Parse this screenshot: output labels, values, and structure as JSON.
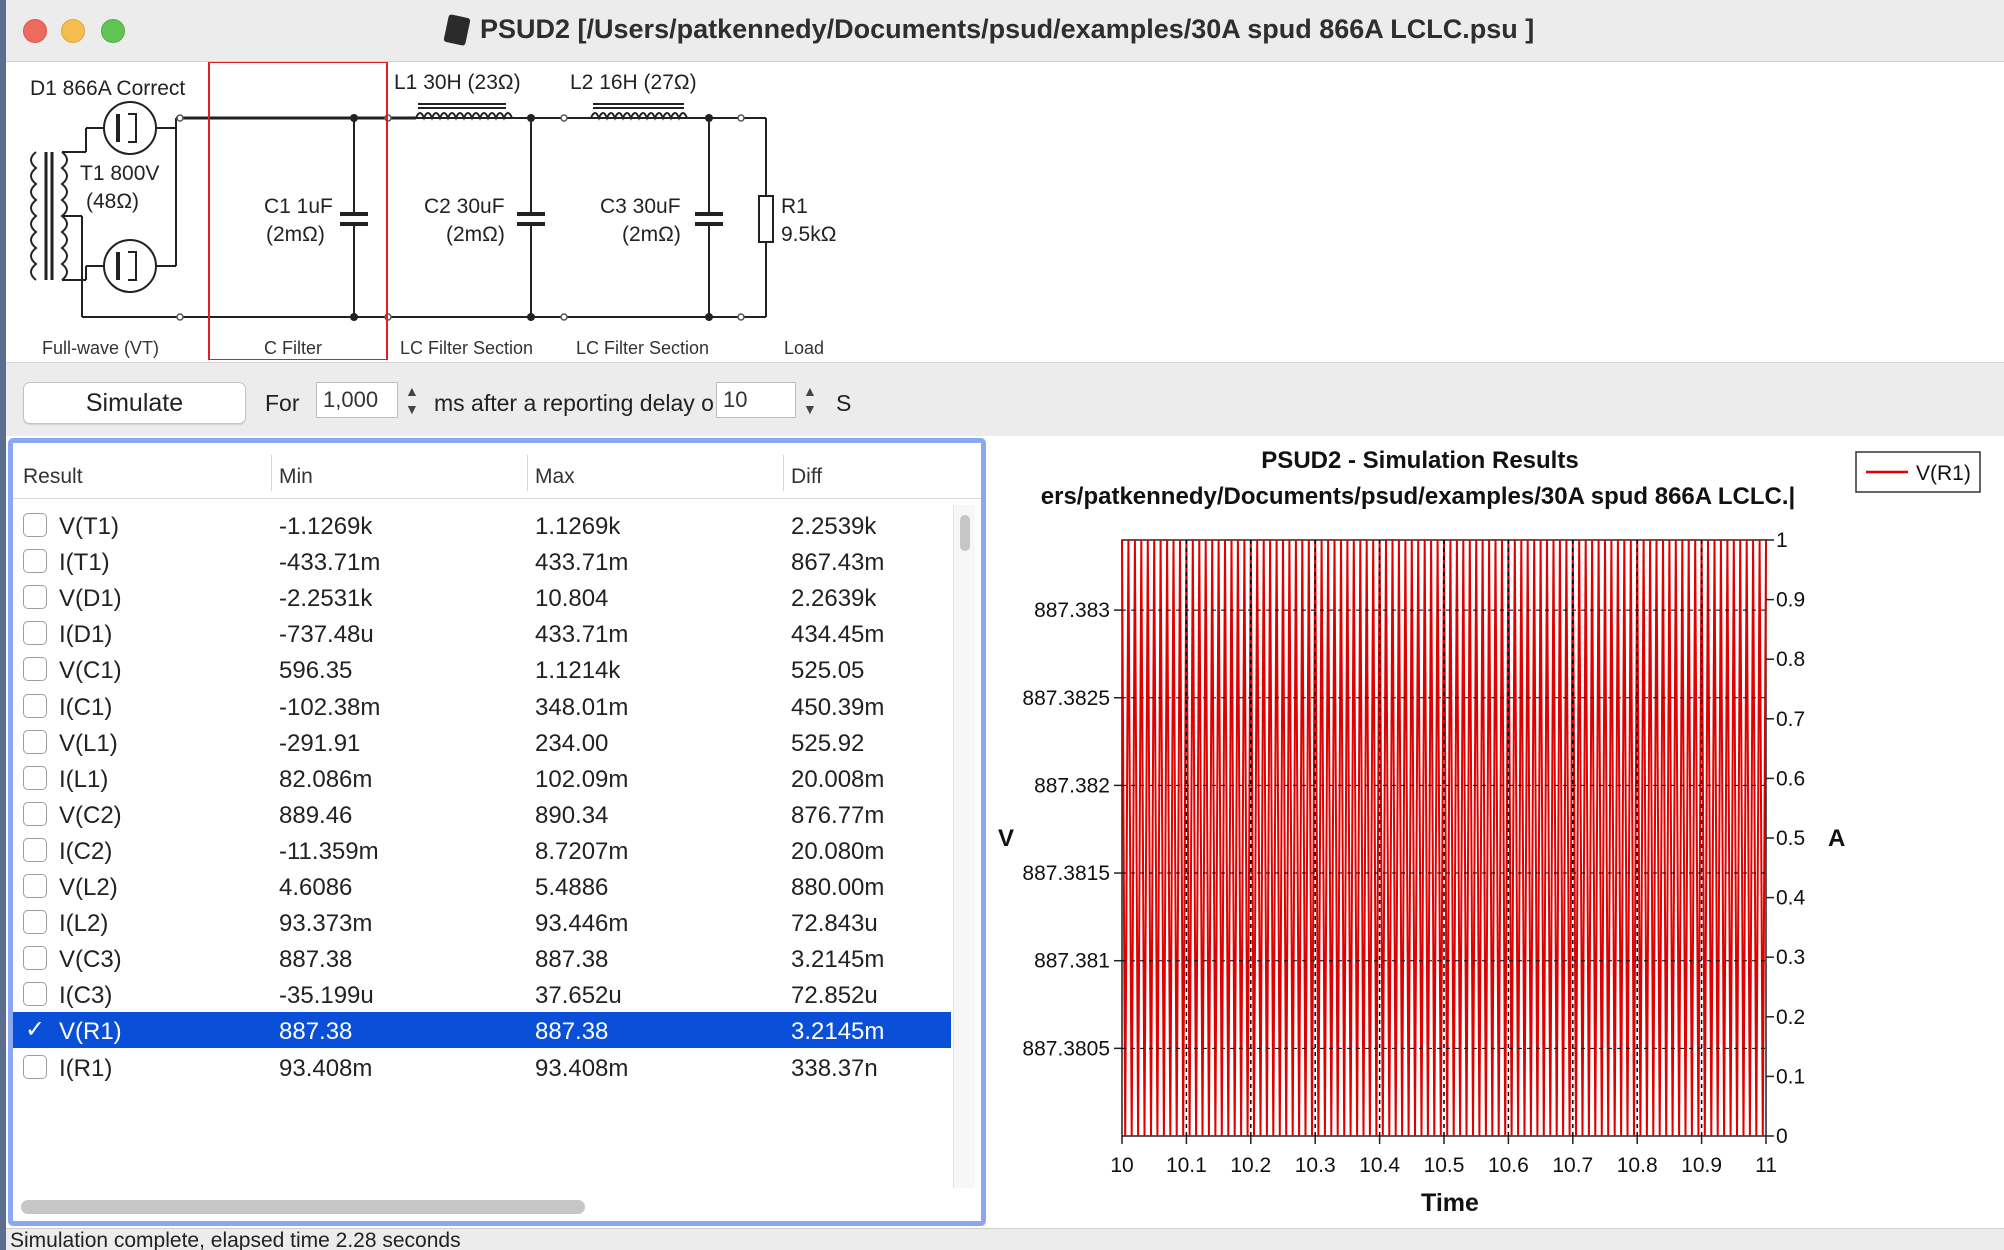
{
  "window": {
    "title": "PSUD2  [/Users/patkennedy/Documents/psud/examples/30A spud 866A LCLC.psu ]"
  },
  "schematic": {
    "components": {
      "d1": "D1 866A Correct",
      "t1_name": "T1 800V",
      "t1_res": "(48Ω)",
      "c1_name": "C1 1uF",
      "c1_res": "(2mΩ)",
      "l1": "L1 30H (23Ω)",
      "c2_name": "C2 30uF",
      "c2_res": "(2mΩ)",
      "l2": "L2 16H (27Ω)",
      "c3_name": "C3 30uF",
      "c3_res": "(2mΩ)",
      "r1_name": "R1",
      "r1_val": "9.5kΩ"
    },
    "sections": [
      "Full-wave (VT)",
      "C Filter",
      "LC Filter Section",
      "LC Filter Section",
      "Load"
    ]
  },
  "controls": {
    "simulate_label": "Simulate",
    "for_label": "For",
    "duration_value": "1,000",
    "ms_label": "ms  after a reporting delay o",
    "delay_value": "10",
    "unit_label": "S"
  },
  "table": {
    "columns": [
      "Result",
      "Min",
      "Max",
      "Diff"
    ],
    "rows": [
      {
        "result": "V(T1)",
        "min": "-1.1269k",
        "max": "1.1269k",
        "diff": "2.2539k",
        "checked": false
      },
      {
        "result": "I(T1)",
        "min": "-433.71m",
        "max": "433.71m",
        "diff": "867.43m",
        "checked": false
      },
      {
        "result": "V(D1)",
        "min": "-2.2531k",
        "max": "10.804",
        "diff": "2.2639k",
        "checked": false
      },
      {
        "result": "I(D1)",
        "min": "-737.48u",
        "max": "433.71m",
        "diff": "434.45m",
        "checked": false
      },
      {
        "result": "V(C1)",
        "min": "596.35",
        "max": "1.1214k",
        "diff": "525.05",
        "checked": false
      },
      {
        "result": "I(C1)",
        "min": "-102.38m",
        "max": "348.01m",
        "diff": "450.39m",
        "checked": false
      },
      {
        "result": "V(L1)",
        "min": "-291.91",
        "max": "234.00",
        "diff": "525.92",
        "checked": false
      },
      {
        "result": "I(L1)",
        "min": "82.086m",
        "max": "102.09m",
        "diff": "20.008m",
        "checked": false
      },
      {
        "result": "V(C2)",
        "min": "889.46",
        "max": "890.34",
        "diff": "876.77m",
        "checked": false
      },
      {
        "result": "I(C2)",
        "min": "-11.359m",
        "max": "8.7207m",
        "diff": "20.080m",
        "checked": false
      },
      {
        "result": "V(L2)",
        "min": "4.6086",
        "max": "5.4886",
        "diff": "880.00m",
        "checked": false
      },
      {
        "result": "I(L2)",
        "min": "93.373m",
        "max": "93.446m",
        "diff": "72.843u",
        "checked": false
      },
      {
        "result": "V(C3)",
        "min": "887.38",
        "max": "887.38",
        "diff": "3.2145m",
        "checked": false
      },
      {
        "result": "I(C3)",
        "min": "-35.199u",
        "max": "37.652u",
        "diff": "72.852u",
        "checked": false
      },
      {
        "result": "V(R1)",
        "min": "887.38",
        "max": "887.38",
        "diff": "3.2145m",
        "checked": true
      },
      {
        "result": "I(R1)",
        "min": "93.408m",
        "max": "93.408m",
        "diff": "338.37n",
        "checked": false
      }
    ]
  },
  "chart_data": {
    "type": "line",
    "title": "PSUD2 - Simulation Results",
    "subtitle": "ers/patkennedy/Documents/psud/examples/30A spud 866A LCLC.|",
    "xlabel": "Time",
    "ylabel": "V",
    "y2label": "A",
    "legend": [
      "V(R1)"
    ],
    "legend_position": "top-right",
    "xlim": [
      10,
      11
    ],
    "ylim": [
      887.38,
      887.3834
    ],
    "y2lim": [
      0,
      1
    ],
    "x_ticks": [
      "10",
      "10.1",
      "10.2",
      "10.3",
      "10.4",
      "10.5",
      "10.6",
      "10.7",
      "10.8",
      "10.9",
      "11"
    ],
    "y_ticks": [
      "887.3805",
      "887.381",
      "887.3815",
      "887.382",
      "887.3825",
      "887.383"
    ],
    "y2_ticks": [
      "0",
      "0.1",
      "0.2",
      "0.3",
      "0.4",
      "0.5",
      "0.6",
      "0.7",
      "0.8",
      "0.9",
      "1"
    ],
    "grid": true,
    "series": [
      {
        "name": "V(R1)",
        "color": "#e00000",
        "min": 887.38,
        "max": 887.3834,
        "cycles_per_second": 100
      }
    ]
  },
  "status": {
    "text": "Simulation complete, elapsed time 2.28 seconds"
  },
  "colors": {
    "accent": "#0a4fd7",
    "panel_focus": "#8aa8f2",
    "section_highlight": "#e02020",
    "trace": "#e00000"
  }
}
